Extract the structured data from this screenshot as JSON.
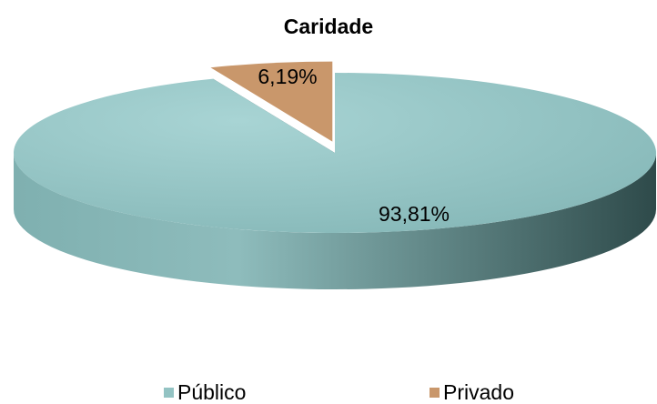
{
  "chart_data": {
    "type": "pie",
    "title": "Caridade",
    "categories": [
      "Público",
      "Privado"
    ],
    "values": [
      93.81,
      6.19
    ],
    "value_labels": [
      "93,81%",
      "6,19%"
    ],
    "colors": [
      "#93c3c3",
      "#c9976b"
    ],
    "legend": "bottom"
  }
}
